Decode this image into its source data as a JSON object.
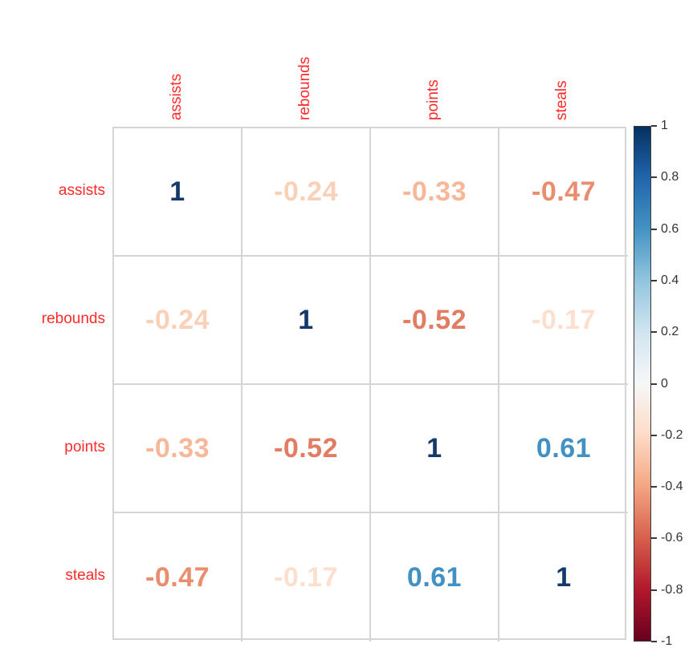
{
  "chart_data": {
    "type": "heatmap",
    "title": "",
    "description": "Correlation matrix plot (corrplot number method)",
    "variables": [
      "assists",
      "rebounds",
      "points",
      "steals"
    ],
    "matrix": [
      [
        1,
        -0.24,
        -0.33,
        -0.47
      ],
      [
        -0.24,
        1,
        -0.52,
        -0.17
      ],
      [
        -0.33,
        -0.52,
        1,
        0.61
      ],
      [
        -0.47,
        -0.17,
        0.61,
        1
      ]
    ],
    "cell_labels": [
      [
        "1",
        "-0.24",
        "-0.33",
        "-0.47"
      ],
      [
        "-0.24",
        "1",
        "-0.52",
        "-0.17"
      ],
      [
        "-0.33",
        "-0.52",
        "1",
        "0.61"
      ],
      [
        "-0.47",
        "-0.17",
        "0.61",
        "1"
      ]
    ],
    "cell_text_colors": [
      [
        "#14396B",
        "#FBD0B9",
        "#F7B89A",
        "#EA8D6F"
      ],
      [
        "#FBD0B9",
        "#14396B",
        "#E27C62",
        "#FCDFCE"
      ],
      [
        "#F7B89A",
        "#E27C62",
        "#14396B",
        "#4291C2"
      ],
      [
        "#EA8D6F",
        "#FCDFCE",
        "#4291C2",
        "#14396B"
      ]
    ],
    "colorbar": {
      "min": -1,
      "max": 1,
      "tick_labels": [
        "1",
        "0.8",
        "0.6",
        "0.4",
        "0.2",
        "0",
        "-0.2",
        "-0.4",
        "-0.6",
        "-0.8",
        "-1"
      ],
      "tick_values": [
        1,
        0.8,
        0.6,
        0.4,
        0.2,
        0,
        -0.2,
        -0.4,
        -0.6,
        -0.8,
        -1
      ],
      "gradient_stops": [
        "#053061",
        "#2166AC",
        "#4393C3",
        "#92C5DE",
        "#D1E5F0",
        "#F7F7F7",
        "#FDDBC7",
        "#F4A582",
        "#D6604D",
        "#B2182B",
        "#67001F"
      ]
    },
    "colors": {
      "label_color": "#FF2B2B",
      "grid_line": "#D5D5D5",
      "tick_label": "#333333",
      "background": "#FFFFFF"
    },
    "legend_position": "right",
    "grid": true
  }
}
